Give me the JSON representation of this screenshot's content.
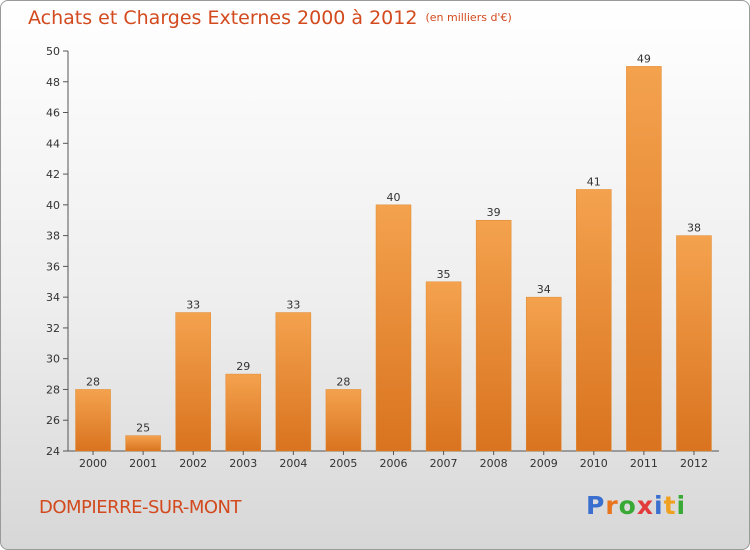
{
  "title": "Achats et Charges Externes 2000 à 2012",
  "unit": "(en milliers d'€)",
  "commune": "DOMPIERRE-SUR-MONT",
  "logo": {
    "letters": [
      "P",
      "r",
      "o",
      "x",
      "i",
      "t",
      "i"
    ],
    "colors": [
      "#3a6fd0",
      "#e8741c",
      "#39a935",
      "#e23b3b",
      "#3a6fd0",
      "#f0a020",
      "#39a935"
    ]
  },
  "colors": {
    "bar_top": "#f4a24e",
    "bar_bottom": "#d9731f",
    "title": "#d24a1e"
  },
  "chart_data": {
    "type": "bar",
    "categories": [
      "2000",
      "2001",
      "2002",
      "2003",
      "2004",
      "2005",
      "2006",
      "2007",
      "2008",
      "2009",
      "2010",
      "2011",
      "2012"
    ],
    "values": [
      28,
      25,
      33,
      29,
      33,
      28,
      40,
      35,
      39,
      34,
      41,
      49,
      38
    ],
    "ylim": [
      24,
      50
    ],
    "yticks": [
      24,
      26,
      28,
      30,
      32,
      34,
      36,
      38,
      40,
      42,
      44,
      46,
      48,
      50
    ],
    "grid": false,
    "data_labels": true
  }
}
